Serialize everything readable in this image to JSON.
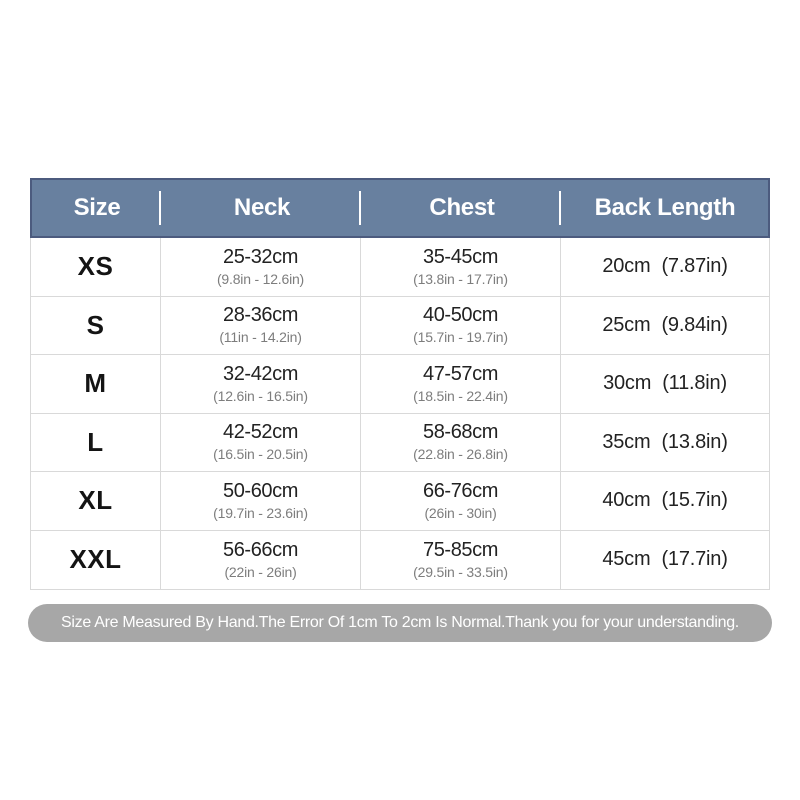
{
  "table": {
    "columns": [
      "Size",
      "Neck",
      "Chest",
      "Back Length"
    ],
    "rows": [
      {
        "size": "XS",
        "neck_cm": "25-32cm",
        "neck_in": "(9.8in - 12.6in)",
        "chest_cm": "35-45cm",
        "chest_in": "(13.8in - 17.7in)",
        "back_cm": "20cm",
        "back_in": "(7.87in)"
      },
      {
        "size": "S",
        "neck_cm": "28-36cm",
        "neck_in": "(11in - 14.2in)",
        "chest_cm": "40-50cm",
        "chest_in": "(15.7in - 19.7in)",
        "back_cm": "25cm",
        "back_in": "(9.84in)"
      },
      {
        "size": "M",
        "neck_cm": "32-42cm",
        "neck_in": "(12.6in - 16.5in)",
        "chest_cm": "47-57cm",
        "chest_in": "(18.5in - 22.4in)",
        "back_cm": "30cm",
        "back_in": "(11.8in)"
      },
      {
        "size": "L",
        "neck_cm": "42-52cm",
        "neck_in": "(16.5in - 20.5in)",
        "chest_cm": "58-68cm",
        "chest_in": "(22.8in - 26.8in)",
        "back_cm": "35cm",
        "back_in": "(13.8in)"
      },
      {
        "size": "XL",
        "neck_cm": "50-60cm",
        "neck_in": "(19.7in - 23.6in)",
        "chest_cm": "66-76cm",
        "chest_in": "(26in - 30in)",
        "back_cm": "40cm",
        "back_in": "(15.7in)"
      },
      {
        "size": "XXL",
        "neck_cm": "56-66cm",
        "neck_in": "(22in - 26in)",
        "chest_cm": "75-85cm",
        "chest_in": "(29.5in - 33.5in)",
        "back_cm": "45cm",
        "back_in": "(17.7in)"
      }
    ]
  },
  "note": {
    "text": "Size Are Measured By Hand.The Error Of 1cm To 2cm Is Normal.Thank you for your understanding."
  },
  "colors": {
    "header_bg": "#68809f",
    "header_border": "#4c5b7e",
    "header_text": "#ffffff",
    "grid": "#d9d9d9",
    "subtext": "#7d7d7d",
    "note_bg": "#a7a7a7",
    "note_text": "#ffffff"
  }
}
